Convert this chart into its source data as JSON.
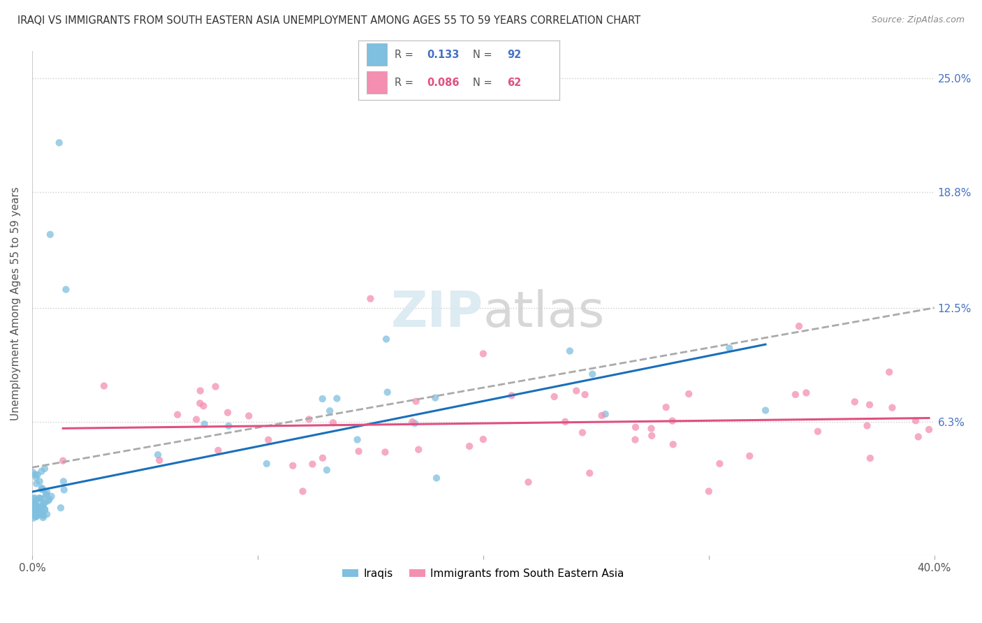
{
  "title": "IRAQI VS IMMIGRANTS FROM SOUTH EASTERN ASIA UNEMPLOYMENT AMONG AGES 55 TO 59 YEARS CORRELATION CHART",
  "source": "Source: ZipAtlas.com",
  "ylabel": "Unemployment Among Ages 55 to 59 years",
  "xlim": [
    0.0,
    0.4
  ],
  "ylim": [
    -0.01,
    0.265
  ],
  "ytick_labels_right": [
    "6.3%",
    "12.5%",
    "18.8%",
    "25.0%"
  ],
  "ytick_vals_right": [
    0.063,
    0.125,
    0.188,
    0.25
  ],
  "legend_label1": "Iraqis",
  "legend_label2": "Immigrants from South Eastern Asia",
  "color_iraqis": "#7fbfdf",
  "color_sea": "#f48fb1",
  "color_trendline_blue": "#1a6fba",
  "color_trendline_pink": "#e05080",
  "color_trendline_gray": "#aaaaaa",
  "bg_color": "#ffffff",
  "R1": "0.133",
  "N1": "92",
  "R2": "0.086",
  "N2": "62"
}
